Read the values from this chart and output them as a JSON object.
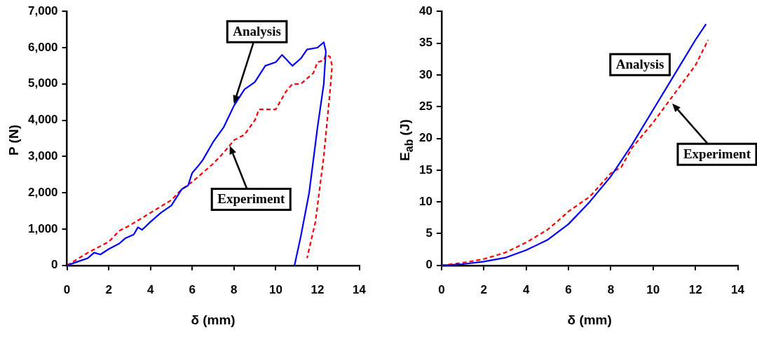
{
  "chart_data": [
    {
      "type": "line",
      "xlabel": "δ (mm)",
      "ylabel": "P (N)",
      "xlim": [
        0,
        14
      ],
      "xticks": [
        0,
        2,
        4,
        6,
        8,
        10,
        12,
        14
      ],
      "ylim": [
        0,
        7000
      ],
      "yticks": [
        0,
        {
          "value": 1000,
          "label": "1,000"
        },
        {
          "value": 2000,
          "label": "2,000"
        },
        {
          "value": 3000,
          "label": "3,000"
        },
        {
          "value": 4000,
          "label": "4,000"
        },
        {
          "value": 5000,
          "label": "5,000"
        },
        {
          "value": 6000,
          "label": "6,000"
        },
        {
          "value": 7000,
          "label": "7,000"
        }
      ],
      "grid": false,
      "legend": false,
      "marker": "none",
      "series": [
        {
          "name": "Analysis",
          "color": "#0000ff",
          "line_style": "solid",
          "x": [
            0,
            0.5,
            1,
            1.3,
            1.6,
            2,
            2.5,
            2.8,
            3.2,
            3.4,
            3.6,
            4,
            4.5,
            5,
            5.5,
            5.8,
            6,
            6.3,
            6.5,
            7,
            7.5,
            8,
            8.5,
            9,
            9.5,
            10,
            10.3,
            10.8,
            11.2,
            11.5,
            12,
            12.3,
            12.4,
            12.3,
            12,
            11.6,
            11.2,
            10.9
          ],
          "values": [
            0,
            100,
            200,
            350,
            300,
            450,
            600,
            750,
            850,
            1050,
            980,
            1200,
            1450,
            1650,
            2100,
            2200,
            2550,
            2750,
            2900,
            3400,
            3800,
            4400,
            4850,
            5050,
            5500,
            5600,
            5800,
            5500,
            5700,
            5950,
            6000,
            6150,
            5900,
            5000,
            3800,
            2000,
            800,
            0
          ]
        },
        {
          "name": "Experiment",
          "color": "#ff0000",
          "line_style": "dashed",
          "x": [
            0,
            1,
            2,
            2.5,
            3,
            4,
            5,
            5.5,
            6,
            7,
            7.5,
            8,
            8.5,
            9,
            9.2,
            10,
            10.5,
            10.8,
            11.2,
            11.8,
            12,
            12.3,
            12.4,
            12.6,
            12.7,
            12.6,
            12.3,
            11.9,
            11.5
          ],
          "values": [
            0,
            350,
            650,
            950,
            1100,
            1450,
            1800,
            2100,
            2300,
            2800,
            3100,
            3450,
            3600,
            4000,
            4300,
            4300,
            4800,
            5000,
            5000,
            5300,
            5600,
            5650,
            5800,
            5750,
            5500,
            4800,
            3000,
            1200,
            200
          ]
        }
      ]
    },
    {
      "type": "line",
      "xlabel": "δ (mm)",
      "ylabel": "E$_{ab}$ (J)",
      "xlim": [
        0,
        14
      ],
      "xticks": [
        0,
        2,
        4,
        6,
        8,
        10,
        12,
        14
      ],
      "ylim": [
        0,
        40
      ],
      "yticks": [
        0,
        5,
        10,
        15,
        20,
        25,
        30,
        35,
        40
      ],
      "grid": false,
      "legend": false,
      "marker": "none",
      "series": [
        {
          "name": "Analysis",
          "color": "#0000ff",
          "line_style": "solid",
          "x": [
            0,
            1,
            2,
            3,
            4,
            5,
            6,
            7,
            8,
            9,
            10,
            11,
            12,
            12.5
          ],
          "values": [
            0,
            0.2,
            0.6,
            1.2,
            2.4,
            4,
            6.5,
            10,
            14,
            19,
            24.5,
            30,
            35.5,
            38
          ]
        },
        {
          "name": "Experiment",
          "color": "#ff0000",
          "line_style": "dashed",
          "x": [
            0,
            1,
            2,
            3,
            3.5,
            4,
            5,
            5.5,
            6,
            7,
            8,
            8.5,
            9,
            10,
            11,
            12,
            12.6
          ],
          "values": [
            0,
            0.4,
            1,
            2,
            2.8,
            3.6,
            5.6,
            7,
            8.5,
            10.8,
            14.5,
            15.5,
            18.5,
            22.5,
            27,
            31.5,
            35.5
          ]
        }
      ]
    }
  ]
}
